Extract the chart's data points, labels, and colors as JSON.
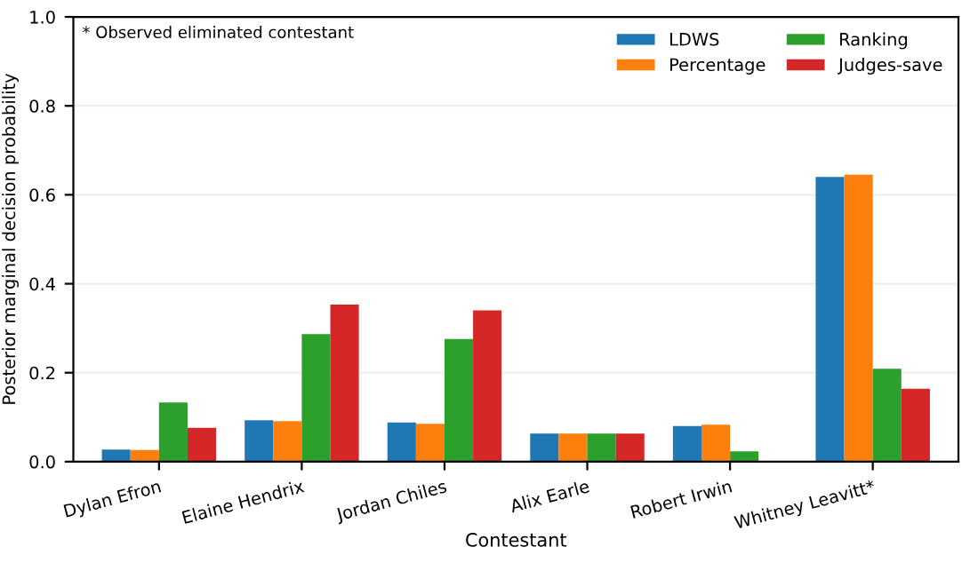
{
  "chart_data": {
    "type": "bar",
    "xlabel": "Contestant",
    "ylabel": "Posterior marginal decision probability",
    "categories": [
      "Dylan Efron",
      "Elaine Hendrix",
      "Jordan Chiles",
      "Alix Earle",
      "Robert Irwin",
      "Whitney Leavitt*"
    ],
    "series": [
      {
        "name": "LDWS",
        "color": "#1f77b4",
        "values": [
          0.027,
          0.093,
          0.088,
          0.063,
          0.08,
          0.64
        ]
      },
      {
        "name": "Percentage",
        "color": "#ff7f0e",
        "values": [
          0.026,
          0.091,
          0.085,
          0.063,
          0.083,
          0.645
        ]
      },
      {
        "name": "Ranking",
        "color": "#2ca02c",
        "values": [
          0.133,
          0.287,
          0.276,
          0.063,
          0.023,
          0.209
        ]
      },
      {
        "name": "Judges-save",
        "color": "#d62728",
        "values": [
          0.076,
          0.353,
          0.34,
          0.063,
          0,
          0.164
        ]
      }
    ],
    "ylim": [
      0,
      1
    ],
    "yticks": [
      {
        "value": 0,
        "label": "0.0"
      },
      0.2,
      0.4,
      0.6,
      0.8,
      {
        "value": 1,
        "label": "1.0"
      }
    ],
    "grid": "y",
    "legend": "top right",
    "annotations": [
      "* Observed eliminated contestant"
    ]
  }
}
